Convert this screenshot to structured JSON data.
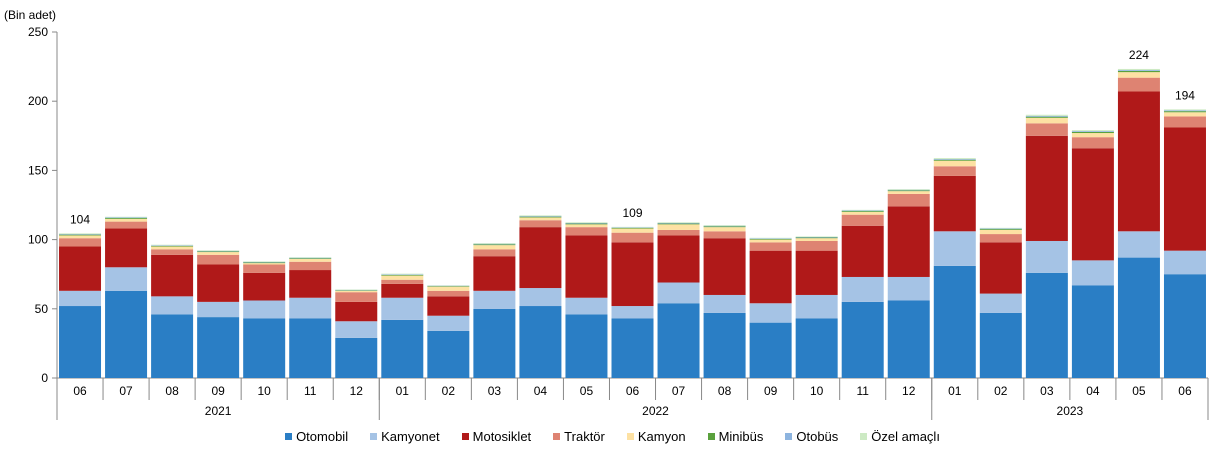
{
  "chart_data": {
    "type": "bar",
    "stacked": true,
    "unit_label": "(Bin adet)",
    "ylim": [
      0,
      250
    ],
    "yticks": [
      0,
      50,
      100,
      150,
      200,
      250
    ],
    "grid": false,
    "legend_position": "bottom",
    "categories": [
      "06",
      "07",
      "08",
      "09",
      "10",
      "11",
      "12",
      "01",
      "02",
      "03",
      "04",
      "05",
      "06",
      "07",
      "08",
      "09",
      "10",
      "11",
      "12",
      "01",
      "02",
      "03",
      "04",
      "05",
      "06"
    ],
    "year_groups": [
      {
        "label": "2021",
        "span": 7
      },
      {
        "label": "2022",
        "span": 12
      },
      {
        "label": "2023",
        "span": 6
      }
    ],
    "series": [
      {
        "name": "Otomobil",
        "color": "#2a7ec5",
        "values": [
          52,
          63,
          46,
          44,
          43,
          43,
          29,
          42,
          34,
          50,
          52,
          46,
          43,
          54,
          47,
          40,
          43,
          55,
          56,
          81,
          47,
          76,
          67,
          87,
          75
        ]
      },
      {
        "name": "Kamyonet",
        "color": "#a5c3e5",
        "values": [
          11,
          17,
          13,
          11,
          13,
          15,
          12,
          16,
          11,
          13,
          13,
          12,
          9,
          15,
          13,
          14,
          17,
          18,
          17,
          25,
          14,
          23,
          18,
          19,
          17
        ]
      },
      {
        "name": "Motosiklet",
        "color": "#b01919",
        "values": [
          32,
          28,
          30,
          27,
          20,
          20,
          14,
          10,
          14,
          25,
          44,
          45,
          46,
          34,
          41,
          38,
          32,
          37,
          51,
          40,
          37,
          76,
          81,
          101,
          89
        ]
      },
      {
        "name": "Traktör",
        "color": "#de8372",
        "values": [
          6,
          5,
          4,
          7,
          6,
          6,
          7,
          3,
          4,
          5,
          5,
          6,
          7,
          4,
          5,
          6,
          7,
          8,
          9,
          7,
          6,
          9,
          8,
          10,
          8
        ]
      },
      {
        "name": "Kamyon",
        "color": "#fde1a3",
        "values": [
          2,
          2,
          2,
          2,
          1,
          2,
          1,
          3,
          3,
          3,
          2,
          2,
          3,
          4,
          3,
          2,
          2,
          2,
          2,
          4,
          3,
          4,
          3,
          4,
          3
        ]
      },
      {
        "name": "Minibüs",
        "color": "#5aa13d",
        "values": [
          0.6,
          0.6,
          0.5,
          0.5,
          0.5,
          0.5,
          0.4,
          0.5,
          0.4,
          0.6,
          0.6,
          0.6,
          0.5,
          0.6,
          0.6,
          0.5,
          0.5,
          0.6,
          0.6,
          0.7,
          0.6,
          0.8,
          0.8,
          0.9,
          0.8
        ]
      },
      {
        "name": "Otobüs",
        "color": "#8db4df",
        "values": [
          0.4,
          0.4,
          0.4,
          0.4,
          0.4,
          0.4,
          0.3,
          0.4,
          0.3,
          0.4,
          0.4,
          0.4,
          0.3,
          0.4,
          0.4,
          0.4,
          0.4,
          0.4,
          0.4,
          0.5,
          0.4,
          0.6,
          0.6,
          0.6,
          0.6
        ]
      },
      {
        "name": "Özel amaçlı",
        "color": "#cdeac4",
        "values": [
          0.5,
          0.5,
          0.4,
          0.4,
          0.4,
          0.4,
          0.3,
          0.5,
          0.3,
          0.5,
          0.5,
          0.5,
          0.4,
          0.5,
          0.5,
          0.4,
          0.4,
          0.5,
          0.5,
          0.7,
          0.5,
          0.8,
          0.7,
          0.8,
          0.7
        ]
      }
    ],
    "data_labels": [
      {
        "index": 0,
        "text": "104"
      },
      {
        "index": 12,
        "text": "109"
      },
      {
        "index": 23,
        "text": "224"
      },
      {
        "index": 24,
        "text": "194"
      }
    ]
  }
}
